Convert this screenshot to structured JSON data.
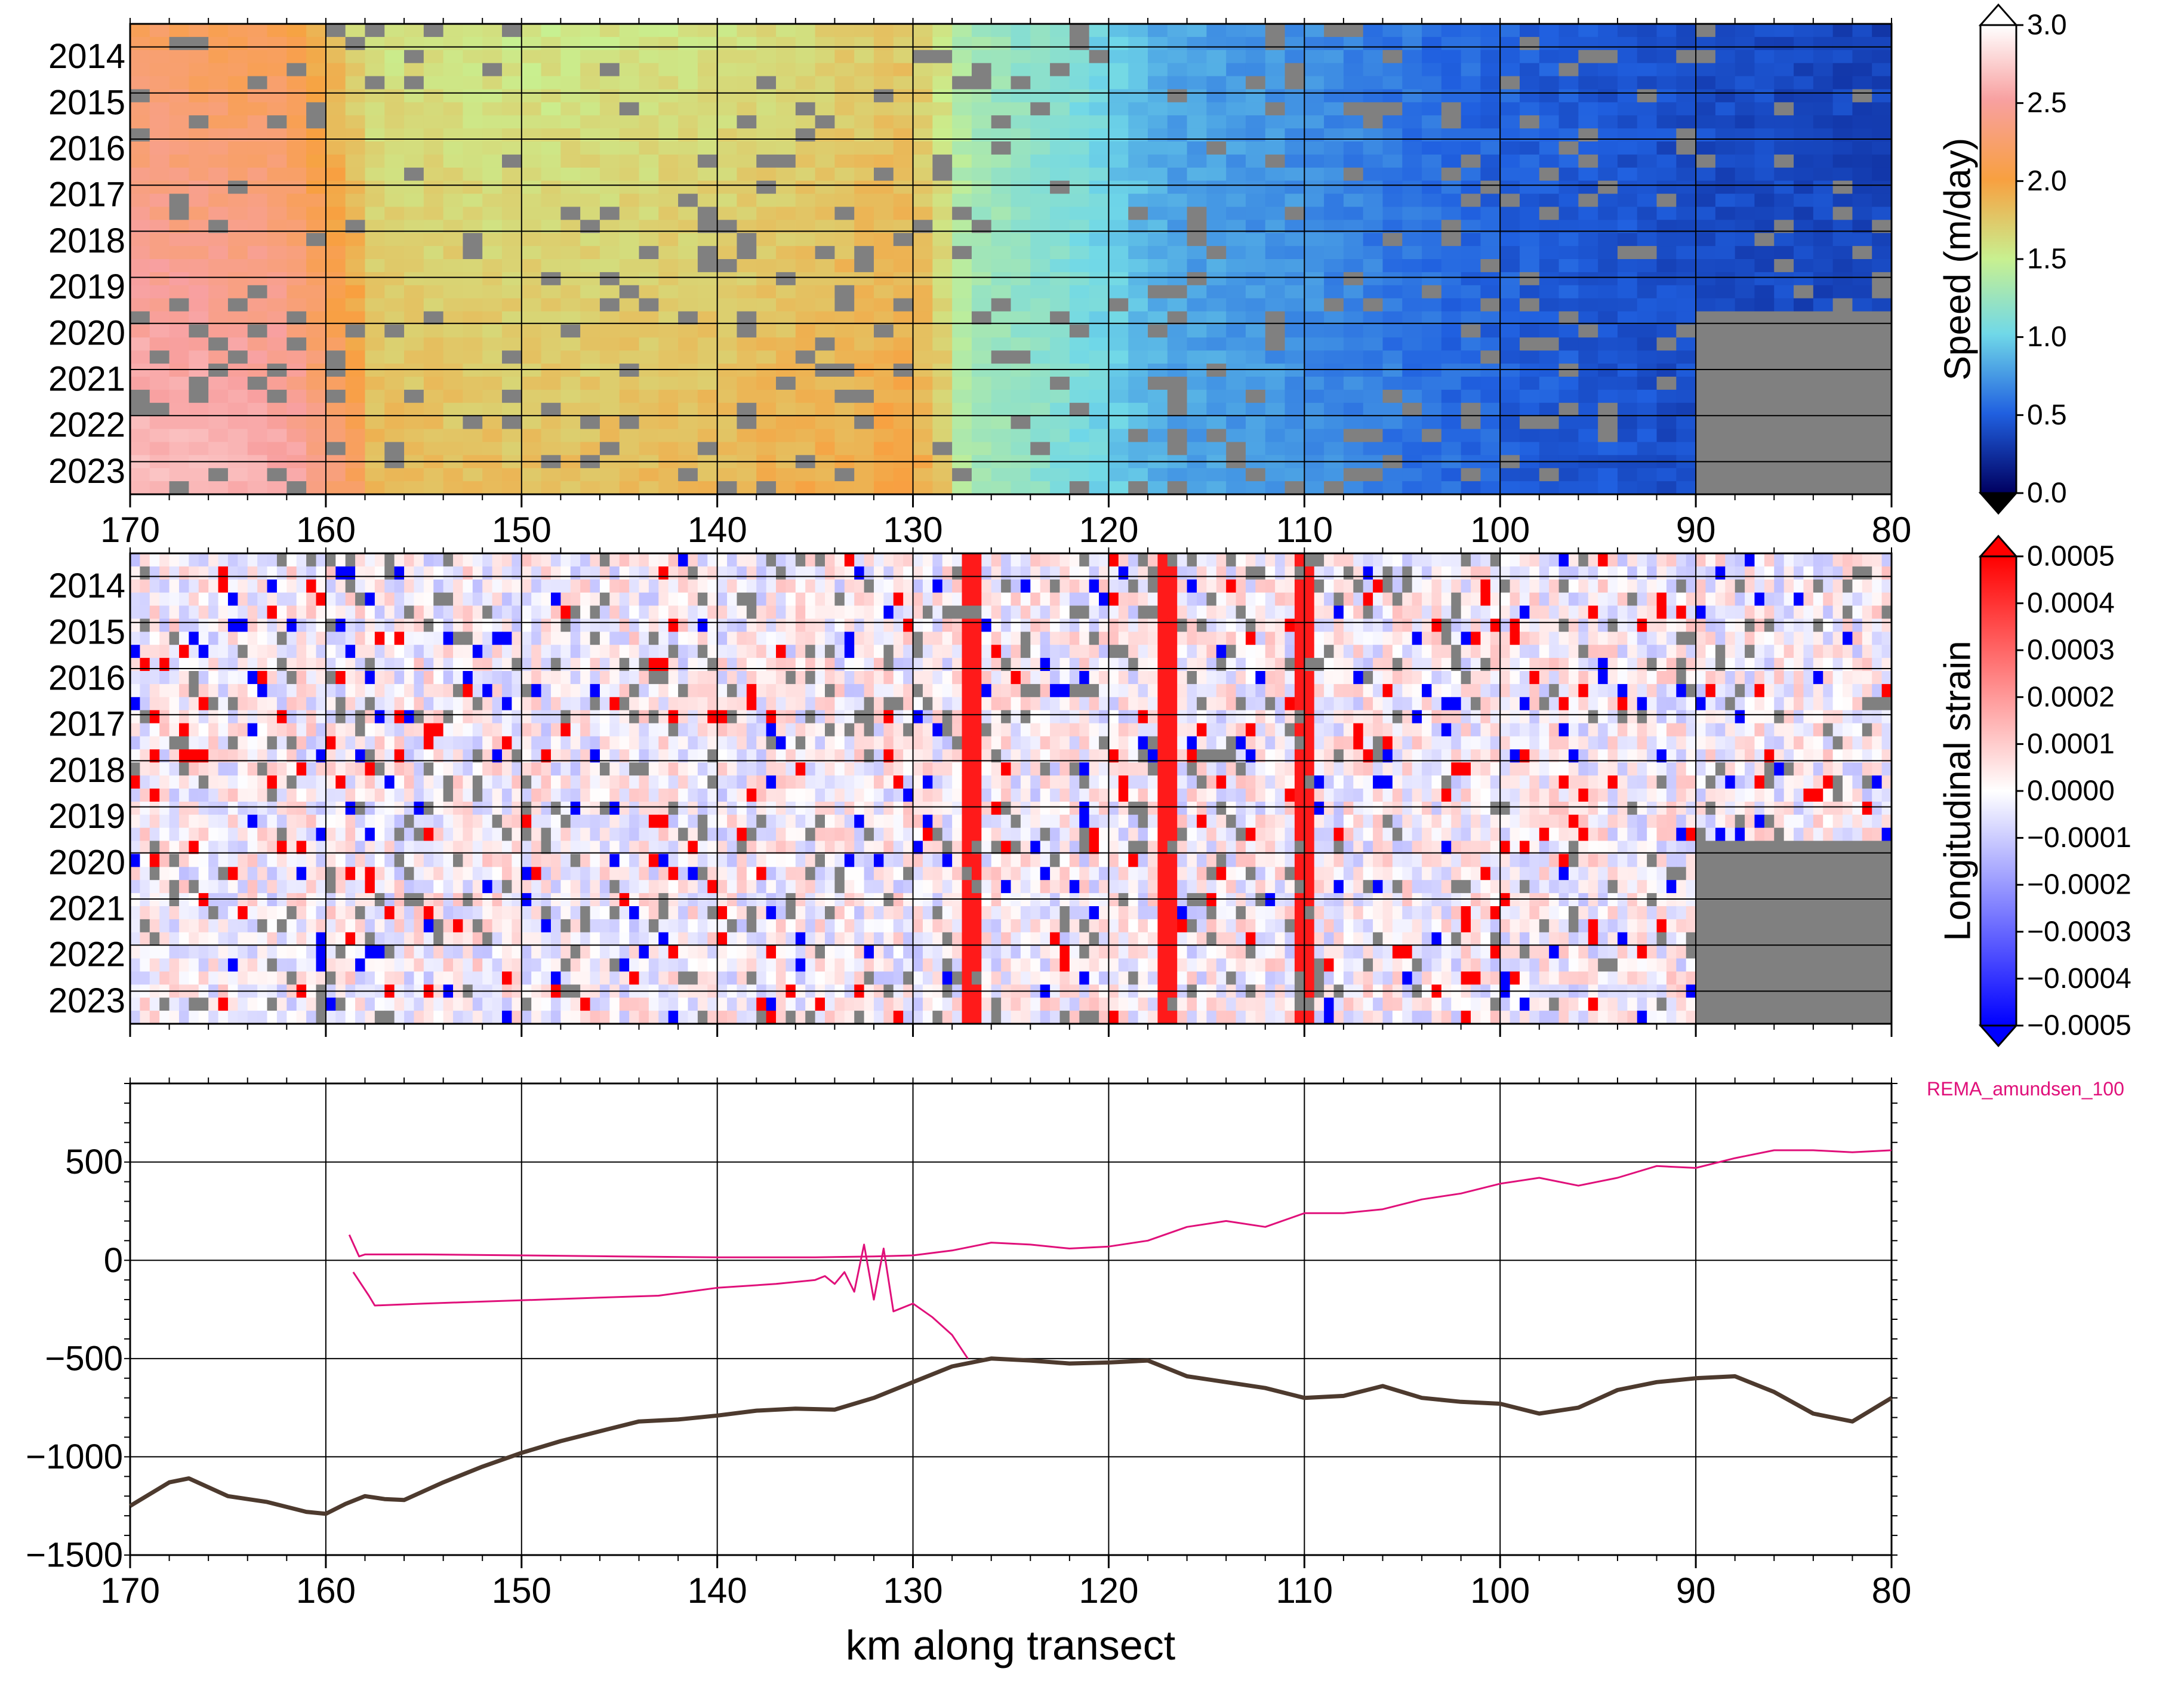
{
  "chart_data": [
    {
      "type": "heatmap",
      "title": "",
      "xlabel": "",
      "ylabel": "",
      "xlim": [
        170,
        80
      ],
      "x_ticks": [
        "170",
        "160",
        "150",
        "140",
        "130",
        "120",
        "110",
        "100",
        "90",
        "80"
      ],
      "y_ticks": [
        "2014",
        "2015",
        "2016",
        "2017",
        "2018",
        "2019",
        "2020",
        "2021",
        "2022",
        "2023"
      ],
      "colorbar": {
        "label": "Speed (m/day)",
        "range": [
          0.0,
          3.0
        ],
        "ticks": [
          "3.0",
          "2.5",
          "2.0",
          "1.5",
          "1.0",
          "0.5",
          "0.0"
        ],
        "colors": [
          "#ffffff",
          "#f8a0a0",
          "#f8a040",
          "#c8f090",
          "#70d8e8",
          "#2060e0",
          "#000060"
        ]
      },
      "speed_profile_m_per_day": {
        "x": [
          170,
          162,
          158,
          150,
          140,
          130,
          127,
          122,
          117,
          110,
          100,
          90,
          80
        ],
        "values": [
          2.2,
          2.1,
          1.6,
          1.55,
          1.6,
          1.75,
          1.3,
          1.1,
          0.8,
          0.7,
          0.5,
          0.4,
          0.35
        ]
      },
      "missing_color": "#808080"
    },
    {
      "type": "heatmap",
      "title": "",
      "xlabel": "",
      "ylabel": "",
      "xlim": [
        170,
        80
      ],
      "x_ticks": [
        "170",
        "160",
        "150",
        "140",
        "130",
        "120",
        "110",
        "100",
        "90",
        "80"
      ],
      "y_ticks": [
        "2014",
        "2015",
        "2016",
        "2017",
        "2018",
        "2019",
        "2020",
        "2021",
        "2022",
        "2023"
      ],
      "colorbar": {
        "label": "Longitudinal strain",
        "range": [
          -0.0005,
          0.0005
        ],
        "ticks": [
          "0.0005",
          "0.0004",
          "0.0003",
          "0.0002",
          "0.0001",
          "0.0000",
          "−0.0001",
          "−0.0002",
          "−0.0003",
          "−0.0004",
          "−0.0005"
        ]
      },
      "strong_extension_bands_km": [
        127,
        117,
        110
      ],
      "missing_color": "#808080"
    },
    {
      "type": "line",
      "title": "",
      "xlabel": "km along transect",
      "ylabel": "",
      "xlim": [
        170,
        80
      ],
      "ylim": [
        -1500,
        900
      ],
      "x_ticks": [
        "170",
        "160",
        "150",
        "140",
        "130",
        "120",
        "110",
        "100",
        "90",
        "80"
      ],
      "y_ticks": [
        "500",
        "0",
        "−500",
        "−1000",
        "−1500"
      ],
      "legend_label": "REMA_amundsen_100",
      "series": [
        {
          "color": "#4d3a2e",
          "x": [
            170,
            168,
            167,
            165,
            163,
            161,
            160,
            159,
            158,
            157,
            156,
            154,
            152,
            150,
            148,
            146,
            144,
            142,
            140,
            138,
            136,
            134,
            132,
            130,
            128,
            126,
            124,
            122,
            120,
            118,
            116,
            114,
            112,
            110,
            108,
            106,
            104,
            102,
            100,
            98,
            96,
            94,
            92,
            90,
            88,
            86,
            84,
            82,
            80
          ],
          "values": [
            -1250,
            -1130,
            -1110,
            -1200,
            -1230,
            -1280,
            -1290,
            -1240,
            -1200,
            -1215,
            -1220,
            -1130,
            -1050,
            -980,
            -920,
            -870,
            -820,
            -810,
            -790,
            -765,
            -755,
            -760,
            -700,
            -620,
            -540,
            -500,
            -510,
            -525,
            -520,
            -510,
            -590,
            -620,
            -650,
            -700,
            -690,
            -640,
            -700,
            -720,
            -730,
            -780,
            -750,
            -660,
            -620,
            -600,
            -590,
            -670,
            -780,
            -820,
            -700
          ]
        },
        {
          "color": "#e0107a",
          "x": [
            158.6,
            157.8,
            157.5,
            155,
            152,
            149,
            146,
            143,
            140,
            137,
            135,
            134.5,
            134,
            133.5,
            133,
            132.5,
            132,
            131.5,
            131,
            130,
            129,
            128,
            127.2
          ],
          "values": [
            -60,
            -180,
            -230,
            -220,
            -210,
            -200,
            -190,
            -180,
            -140,
            -120,
            -100,
            -80,
            -120,
            -60,
            -160,
            80,
            -200,
            60,
            -260,
            -220,
            -290,
            -380,
            -500
          ]
        },
        {
          "color": "#e0107a",
          "x": [
            158.8,
            158.3,
            158,
            155,
            150,
            145,
            140,
            135,
            132,
            130,
            128,
            126,
            124,
            122,
            120,
            118,
            116,
            114,
            112,
            110,
            108,
            106,
            104,
            102,
            100,
            98,
            96,
            94,
            92,
            90,
            88,
            86,
            84,
            82,
            80
          ],
          "values": [
            130,
            20,
            30,
            30,
            25,
            20,
            15,
            15,
            20,
            25,
            50,
            90,
            80,
            60,
            70,
            100,
            170,
            200,
            170,
            240,
            240,
            260,
            310,
            340,
            390,
            420,
            380,
            420,
            480,
            470,
            520,
            560,
            560,
            550,
            560
          ]
        }
      ]
    }
  ]
}
